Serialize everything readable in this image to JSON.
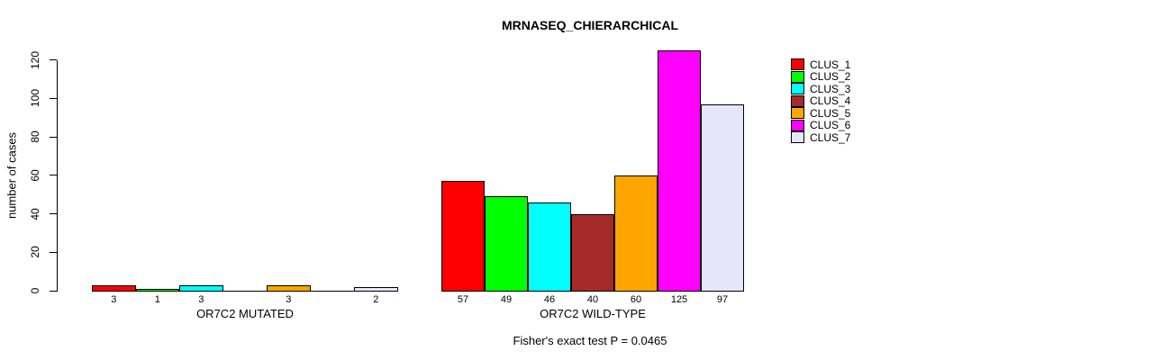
{
  "title": "MRNASEQ_CHIERARCHICAL",
  "footer": "Fisher's exact test P = 0.0465",
  "chart_data": {
    "type": "bar",
    "title": "MRNASEQ_CHIERARCHICAL",
    "xlabel": "",
    "ylabel": "number of cases",
    "y_ticks": [
      0,
      20,
      40,
      60,
      80,
      100,
      120
    ],
    "ylim": [
      0,
      128
    ],
    "grid": false,
    "legend_position": "right",
    "series": [
      {
        "name": "CLUS_1",
        "color": "#FF0000"
      },
      {
        "name": "CLUS_2",
        "color": "#00FF00"
      },
      {
        "name": "CLUS_3",
        "color": "#00FFFF"
      },
      {
        "name": "CLUS_4",
        "color": "#A52A2A"
      },
      {
        "name": "CLUS_5",
        "color": "#FFA500"
      },
      {
        "name": "CLUS_6",
        "color": "#FF00FF"
      },
      {
        "name": "CLUS_7",
        "color": "#E6E6FA"
      }
    ],
    "groups": [
      {
        "label": "OR7C2 MUTATED",
        "values": [
          3,
          1,
          3,
          0,
          3,
          0,
          2
        ]
      },
      {
        "label": "OR7C2 WILD-TYPE",
        "values": [
          57,
          49,
          46,
          40,
          60,
          125,
          97
        ]
      }
    ],
    "annotation": "Fisher's exact test P = 0.0465"
  }
}
